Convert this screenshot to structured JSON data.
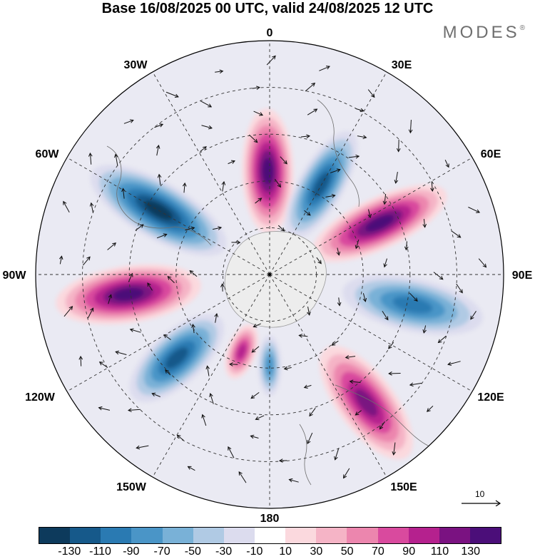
{
  "title": "Base 16/08/2025 00 UTC, valid 24/08/2025 12 UTC",
  "brand": {
    "name": "MODES",
    "mark": "®"
  },
  "map": {
    "projection": "south-polar-stereographic",
    "longitude_labels": {
      "top": "0",
      "upper_right": "30E",
      "right_upper": "60E",
      "right": "90E",
      "right_lower": "120E",
      "lower_right": "150E",
      "bottom": "180",
      "lower_left": "150W",
      "left_lower": "120W",
      "left": "90W",
      "left_upper": "60W",
      "upper_left": "30W"
    },
    "anomaly_lobes": [
      {
        "type": "high",
        "peak": "130",
        "sector": "0"
      },
      {
        "type": "low",
        "peak": "-110",
        "sector": "30E"
      },
      {
        "type": "high",
        "peak": "130",
        "sector": "60E"
      },
      {
        "type": "low",
        "peak": "-90",
        "sector": "100E"
      },
      {
        "type": "high",
        "peak": "110",
        "sector": "140E"
      },
      {
        "type": "low",
        "peak": "-70",
        "sector": "180"
      },
      {
        "type": "high",
        "peak": "90",
        "sector": "155W"
      },
      {
        "type": "low",
        "peak": "-110",
        "sector": "130W"
      },
      {
        "type": "high",
        "peak": "130",
        "sector": "90W"
      },
      {
        "type": "low",
        "peak": "-130",
        "sector": "55W"
      }
    ],
    "wind_vector_reference": "10"
  },
  "colorbar": {
    "colors": [
      "#0d3a5c",
      "#16598a",
      "#2a7ab2",
      "#4a95c7",
      "#79b1d7",
      "#b0cae4",
      "#dcdcee",
      "#ffffff",
      "#fbd9de",
      "#f5b4c6",
      "#ec86ae",
      "#d94a9e",
      "#b5218e",
      "#7a1281",
      "#4b0e79"
    ],
    "ticks": [
      "-130",
      "-110",
      "-90",
      "-70",
      "-50",
      "-30",
      "-10",
      "10",
      "30",
      "50",
      "70",
      "90",
      "110",
      "130"
    ]
  }
}
